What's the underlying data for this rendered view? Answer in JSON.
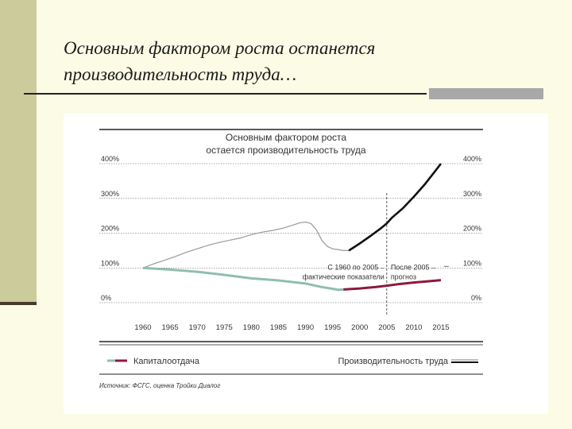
{
  "slide": {
    "title_line1": "Основным фактором роста останется",
    "title_line2": "производительность труда…"
  },
  "chart_data": {
    "type": "line",
    "title_line1": "Основным фактором роста",
    "title_line2": "остается производительность труда",
    "x_ticks": [
      "1960",
      "1965",
      "1970",
      "1975",
      "1980",
      "1985",
      "1990",
      "1995",
      "2000",
      "2005",
      "2010",
      "2015"
    ],
    "y_ticks": [
      "0%",
      "100%",
      "200%",
      "300%",
      "400%"
    ],
    "xlim": [
      1960,
      2015
    ],
    "ylim": [
      0,
      400
    ],
    "grid": true,
    "divider_year": 2005,
    "annotation_left_line1": "С 1960 по 2005 –",
    "annotation_left_line2": "фактические показатели",
    "annotation_right_line1": "После 2005 –",
    "annotation_right_line2": "прогноз",
    "legend_capital": "Капиталоотдача",
    "legend_productivity": "Производительность труда",
    "source": "Источник: ФСГС, оценка Тройки Диалог",
    "colors": {
      "capital": "#8fbfae",
      "capital_forecast": "#8b1a3a",
      "productivity": "#999999",
      "productivity_forecast": "#111111"
    },
    "series": [
      {
        "name": "Производительность труда",
        "x": [
          1960,
          1962,
          1964,
          1966,
          1968,
          1970,
          1972,
          1974,
          1976,
          1978,
          1980,
          1982,
          1984,
          1986,
          1988,
          1989,
          1990,
          1991,
          1992,
          1993,
          1994,
          1995,
          1996,
          1997,
          1998
        ],
        "y": [
          100,
          112,
          122,
          133,
          145,
          155,
          165,
          173,
          180,
          186,
          196,
          203,
          208,
          215,
          225,
          230,
          232,
          228,
          210,
          180,
          162,
          155,
          153,
          150,
          150
        ]
      },
      {
        "name": "Производительность труда (прогноз)",
        "x": [
          1998,
          2000,
          2002,
          2004,
          2005,
          2006,
          2008,
          2010,
          2012,
          2014,
          2015
        ],
        "y": [
          150,
          170,
          192,
          215,
          228,
          245,
          272,
          305,
          340,
          380,
          400
        ]
      },
      {
        "name": "Капиталоотдача",
        "x": [
          1960,
          1965,
          1970,
          1975,
          1980,
          1985,
          1990,
          1993,
          1995,
          1996,
          1997
        ],
        "y": [
          100,
          95,
          89,
          80,
          70,
          64,
          55,
          45,
          40,
          37,
          38
        ]
      },
      {
        "name": "Капиталоотдача (прогноз)",
        "x": [
          1997,
          2000,
          2003,
          2005,
          2007,
          2010,
          2013,
          2015
        ],
        "y": [
          38,
          41,
          45,
          49,
          53,
          58,
          62,
          65
        ]
      }
    ]
  }
}
